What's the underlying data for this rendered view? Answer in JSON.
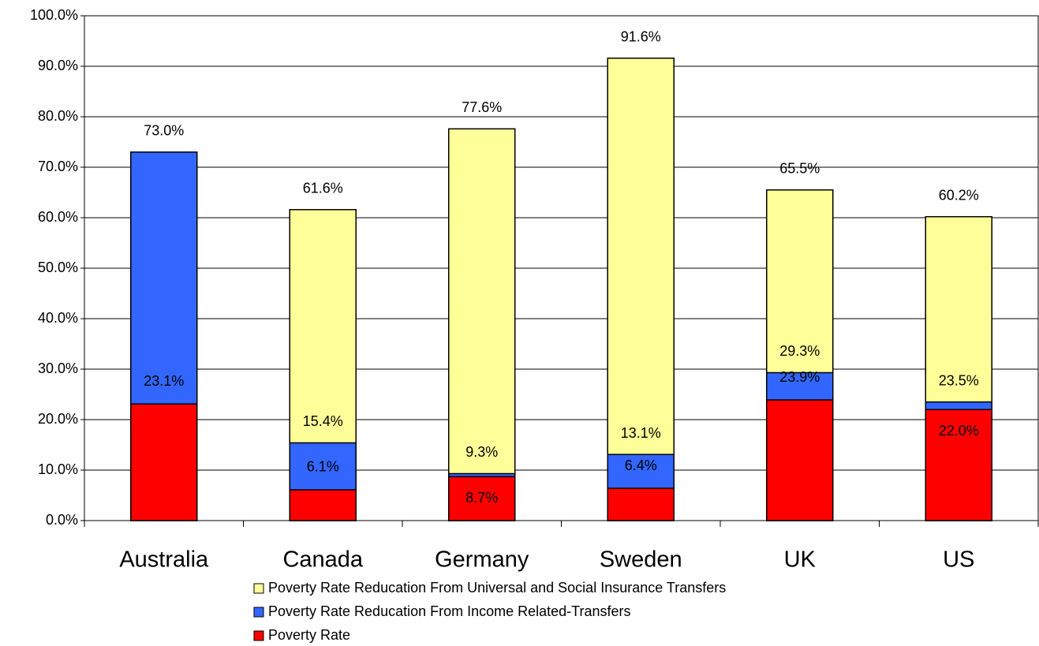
{
  "chart_data": {
    "type": "bar",
    "barmode": "overlay",
    "categories": [
      "Australia",
      "Canada",
      "Germany",
      "Sweden",
      "UK",
      "US"
    ],
    "series": [
      {
        "name": "Poverty Rate Reducation From Universal and Social Insurance Transfers",
        "color": "#ffff99",
        "values": [
          null,
          61.6,
          77.6,
          91.6,
          65.5,
          60.2
        ],
        "value_labels": [
          null,
          "61.6%",
          "77.6%",
          "91.6%",
          "65.5%",
          "60.2%"
        ]
      },
      {
        "name": "Poverty Rate Reducation From Income Related-Transfers",
        "color": "#3366ff",
        "values": [
          73.0,
          15.4,
          9.3,
          13.1,
          29.3,
          23.5
        ],
        "value_labels": [
          "73.0%",
          "15.4%",
          "9.3%",
          "13.1%",
          "29.3%",
          "23.5%"
        ]
      },
      {
        "name": "Poverty Rate",
        "color": "#ff0000",
        "values": [
          23.1,
          6.1,
          8.7,
          6.4,
          23.9,
          22.0
        ],
        "value_labels": [
          "23.1%",
          "6.1%",
          "8.7%",
          "6.4%",
          "23.9%",
          "22.0%"
        ]
      }
    ],
    "ylim": [
      0,
      100
    ],
    "yticks": [
      {
        "value": 0,
        "label": "0.0%"
      },
      {
        "value": 10,
        "label": "10.0%"
      },
      {
        "value": 20,
        "label": "20.0%"
      },
      {
        "value": 30,
        "label": "30.0%"
      },
      {
        "value": 40,
        "label": "40.0%"
      },
      {
        "value": 50,
        "label": "50.0%"
      },
      {
        "value": 60,
        "label": "60.0%"
      },
      {
        "value": 70,
        "label": "70.0%"
      },
      {
        "value": 80,
        "label": "80.0%"
      },
      {
        "value": 90,
        "label": "90.0%"
      },
      {
        "value": 100,
        "label": "100.0%"
      }
    ],
    "grid": true
  }
}
